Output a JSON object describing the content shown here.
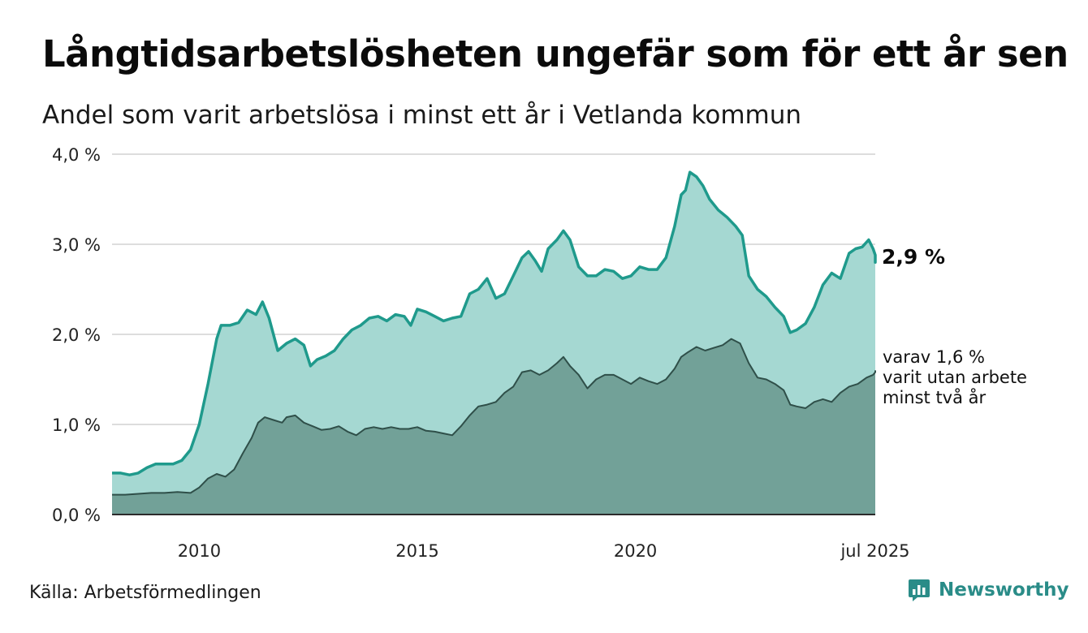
{
  "title": "Långtidsarbetslösheten ungefär som för ett år sen",
  "subtitle": "Andel som varit arbetslösa i minst ett år i Vetlanda kommun",
  "source": "Källa: Arbetsförmedlingen",
  "brand": {
    "name": "Newsworthy",
    "icon": "newsworthy-chart-logo-icon"
  },
  "colors": {
    "upper_line": "#1f9a8c",
    "upper_fill": "#a5d8d2",
    "lower_line": "#2f4f49",
    "lower_fill": "#72a198",
    "grid": "#dddddd"
  },
  "chart_data": {
    "type": "area",
    "y_ticks": [
      "0,0 %",
      "1,0 %",
      "2,0 %",
      "3,0 %",
      "4,0 %"
    ],
    "x_ticks": [
      {
        "x": 2010.0,
        "label": "2010"
      },
      {
        "x": 2015.0,
        "label": "2015"
      },
      {
        "x": 2020.0,
        "label": "2020"
      },
      {
        "x": 2025.5,
        "label": "jul 2025"
      }
    ],
    "xlim": [
      2008.0,
      2025.5
    ],
    "ylim": [
      0,
      4
    ],
    "grid": true,
    "series": [
      {
        "end_label": "2,9 %",
        "points": [
          [
            2008.0,
            0.46
          ],
          [
            2008.2,
            0.46
          ],
          [
            2008.4,
            0.44
          ],
          [
            2008.6,
            0.46
          ],
          [
            2008.8,
            0.52
          ],
          [
            2009.0,
            0.56
          ],
          [
            2009.2,
            0.56
          ],
          [
            2009.4,
            0.56
          ],
          [
            2009.6,
            0.6
          ],
          [
            2009.8,
            0.72
          ],
          [
            2010.0,
            1.0
          ],
          [
            2010.2,
            1.45
          ],
          [
            2010.4,
            1.95
          ],
          [
            2010.5,
            2.1
          ],
          [
            2010.7,
            2.1
          ],
          [
            2010.9,
            2.13
          ],
          [
            2011.1,
            2.27
          ],
          [
            2011.3,
            2.22
          ],
          [
            2011.45,
            2.36
          ],
          [
            2011.6,
            2.18
          ],
          [
            2011.8,
            1.82
          ],
          [
            2012.0,
            1.9
          ],
          [
            2012.2,
            1.95
          ],
          [
            2012.4,
            1.88
          ],
          [
            2012.55,
            1.65
          ],
          [
            2012.7,
            1.72
          ],
          [
            2012.9,
            1.76
          ],
          [
            2013.1,
            1.82
          ],
          [
            2013.3,
            1.95
          ],
          [
            2013.5,
            2.05
          ],
          [
            2013.7,
            2.1
          ],
          [
            2013.9,
            2.18
          ],
          [
            2014.1,
            2.2
          ],
          [
            2014.3,
            2.15
          ],
          [
            2014.5,
            2.22
          ],
          [
            2014.7,
            2.2
          ],
          [
            2014.85,
            2.1
          ],
          [
            2015.0,
            2.28
          ],
          [
            2015.2,
            2.25
          ],
          [
            2015.4,
            2.2
          ],
          [
            2015.6,
            2.15
          ],
          [
            2015.8,
            2.18
          ],
          [
            2016.0,
            2.2
          ],
          [
            2016.2,
            2.45
          ],
          [
            2016.4,
            2.5
          ],
          [
            2016.6,
            2.62
          ],
          [
            2016.8,
            2.4
          ],
          [
            2017.0,
            2.45
          ],
          [
            2017.2,
            2.65
          ],
          [
            2017.4,
            2.85
          ],
          [
            2017.55,
            2.92
          ],
          [
            2017.7,
            2.82
          ],
          [
            2017.85,
            2.7
          ],
          [
            2018.0,
            2.95
          ],
          [
            2018.2,
            3.05
          ],
          [
            2018.35,
            3.15
          ],
          [
            2018.5,
            3.05
          ],
          [
            2018.7,
            2.75
          ],
          [
            2018.9,
            2.65
          ],
          [
            2019.1,
            2.65
          ],
          [
            2019.3,
            2.72
          ],
          [
            2019.5,
            2.7
          ],
          [
            2019.7,
            2.62
          ],
          [
            2019.9,
            2.65
          ],
          [
            2020.1,
            2.75
          ],
          [
            2020.3,
            2.72
          ],
          [
            2020.5,
            2.72
          ],
          [
            2020.7,
            2.85
          ],
          [
            2020.9,
            3.2
          ],
          [
            2021.05,
            3.55
          ],
          [
            2021.15,
            3.6
          ],
          [
            2021.25,
            3.8
          ],
          [
            2021.4,
            3.75
          ],
          [
            2021.55,
            3.65
          ],
          [
            2021.7,
            3.5
          ],
          [
            2021.9,
            3.38
          ],
          [
            2022.1,
            3.3
          ],
          [
            2022.3,
            3.2
          ],
          [
            2022.45,
            3.1
          ],
          [
            2022.6,
            2.65
          ],
          [
            2022.8,
            2.5
          ],
          [
            2023.0,
            2.42
          ],
          [
            2023.2,
            2.3
          ],
          [
            2023.4,
            2.2
          ],
          [
            2023.55,
            2.02
          ],
          [
            2023.7,
            2.05
          ],
          [
            2023.9,
            2.12
          ],
          [
            2024.1,
            2.3
          ],
          [
            2024.3,
            2.55
          ],
          [
            2024.5,
            2.68
          ],
          [
            2024.7,
            2.62
          ],
          [
            2024.9,
            2.9
          ],
          [
            2025.05,
            2.95
          ],
          [
            2025.2,
            2.97
          ],
          [
            2025.35,
            3.05
          ],
          [
            2025.45,
            2.95
          ],
          [
            2025.55,
            2.88
          ],
          [
            2025.65,
            2.8
          ],
          [
            2025.7,
            2.87
          ]
        ]
      },
      {
        "end_label_lines": [
          "varav 1,6 %",
          "varit utan arbete",
          "minst två år"
        ],
        "points": [
          [
            2008.0,
            0.22
          ],
          [
            2008.3,
            0.22
          ],
          [
            2008.6,
            0.23
          ],
          [
            2008.9,
            0.24
          ],
          [
            2009.2,
            0.24
          ],
          [
            2009.5,
            0.25
          ],
          [
            2009.8,
            0.24
          ],
          [
            2010.0,
            0.3
          ],
          [
            2010.2,
            0.4
          ],
          [
            2010.4,
            0.45
          ],
          [
            2010.6,
            0.42
          ],
          [
            2010.8,
            0.5
          ],
          [
            2011.0,
            0.68
          ],
          [
            2011.2,
            0.85
          ],
          [
            2011.35,
            1.02
          ],
          [
            2011.5,
            1.08
          ],
          [
            2011.7,
            1.05
          ],
          [
            2011.9,
            1.02
          ],
          [
            2012.0,
            1.08
          ],
          [
            2012.2,
            1.1
          ],
          [
            2012.4,
            1.02
          ],
          [
            2012.6,
            0.98
          ],
          [
            2012.8,
            0.94
          ],
          [
            2013.0,
            0.95
          ],
          [
            2013.2,
            0.98
          ],
          [
            2013.4,
            0.92
          ],
          [
            2013.6,
            0.88
          ],
          [
            2013.8,
            0.95
          ],
          [
            2014.0,
            0.97
          ],
          [
            2014.2,
            0.95
          ],
          [
            2014.4,
            0.97
          ],
          [
            2014.6,
            0.95
          ],
          [
            2014.8,
            0.95
          ],
          [
            2015.0,
            0.97
          ],
          [
            2015.2,
            0.93
          ],
          [
            2015.4,
            0.92
          ],
          [
            2015.6,
            0.9
          ],
          [
            2015.8,
            0.88
          ],
          [
            2016.0,
            0.98
          ],
          [
            2016.2,
            1.1
          ],
          [
            2016.4,
            1.2
          ],
          [
            2016.6,
            1.22
          ],
          [
            2016.8,
            1.25
          ],
          [
            2017.0,
            1.35
          ],
          [
            2017.2,
            1.42
          ],
          [
            2017.4,
            1.58
          ],
          [
            2017.6,
            1.6
          ],
          [
            2017.8,
            1.55
          ],
          [
            2018.0,
            1.6
          ],
          [
            2018.2,
            1.68
          ],
          [
            2018.35,
            1.75
          ],
          [
            2018.5,
            1.65
          ],
          [
            2018.7,
            1.55
          ],
          [
            2018.9,
            1.4
          ],
          [
            2019.1,
            1.5
          ],
          [
            2019.3,
            1.55
          ],
          [
            2019.5,
            1.55
          ],
          [
            2019.7,
            1.5
          ],
          [
            2019.9,
            1.45
          ],
          [
            2020.1,
            1.52
          ],
          [
            2020.3,
            1.48
          ],
          [
            2020.5,
            1.45
          ],
          [
            2020.7,
            1.5
          ],
          [
            2020.9,
            1.62
          ],
          [
            2021.05,
            1.75
          ],
          [
            2021.2,
            1.8
          ],
          [
            2021.4,
            1.86
          ],
          [
            2021.6,
            1.82
          ],
          [
            2021.8,
            1.85
          ],
          [
            2022.0,
            1.88
          ],
          [
            2022.2,
            1.95
          ],
          [
            2022.4,
            1.9
          ],
          [
            2022.6,
            1.68
          ],
          [
            2022.8,
            1.52
          ],
          [
            2023.0,
            1.5
          ],
          [
            2023.2,
            1.45
          ],
          [
            2023.4,
            1.38
          ],
          [
            2023.55,
            1.22
          ],
          [
            2023.7,
            1.2
          ],
          [
            2023.9,
            1.18
          ],
          [
            2024.1,
            1.25
          ],
          [
            2024.3,
            1.28
          ],
          [
            2024.5,
            1.25
          ],
          [
            2024.7,
            1.35
          ],
          [
            2024.9,
            1.42
          ],
          [
            2025.1,
            1.45
          ],
          [
            2025.3,
            1.52
          ],
          [
            2025.45,
            1.55
          ],
          [
            2025.6,
            1.58
          ],
          [
            2025.7,
            1.6
          ]
        ]
      }
    ]
  }
}
